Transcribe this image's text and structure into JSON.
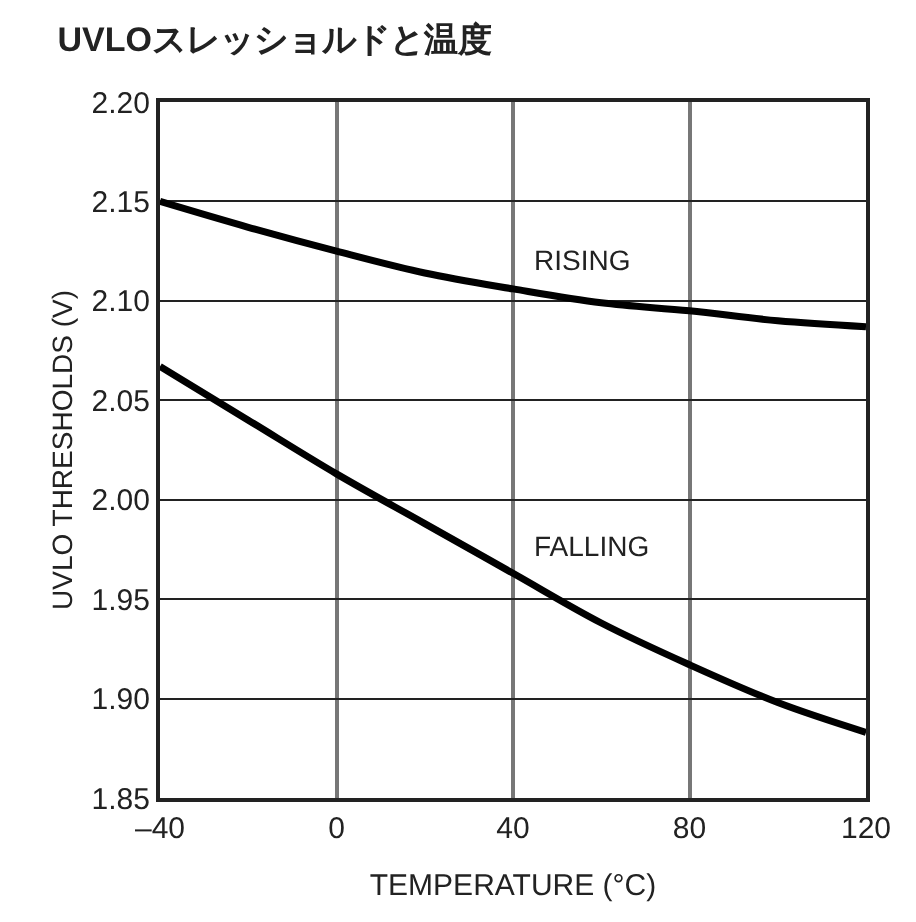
{
  "chart_data": {
    "type": "line",
    "title": "UVLOスレッショルドと温度",
    "xlabel": "TEMPERATURE (°C)",
    "ylabel": "UVLO THRESHOLDS (V)",
    "x": [
      -40,
      -20,
      0,
      20,
      40,
      60,
      80,
      100,
      120
    ],
    "series": [
      {
        "name": "RISING",
        "color": "#000000",
        "values": [
          2.15,
          2.137,
          2.125,
          2.114,
          2.106,
          2.099,
          2.095,
          2.09,
          2.087
        ]
      },
      {
        "name": "FALLING",
        "color": "#000000",
        "values": [
          2.067,
          2.04,
          2.013,
          1.988,
          1.963,
          1.938,
          1.917,
          1.898,
          1.883
        ]
      }
    ],
    "xlim": [
      -40,
      120
    ],
    "xticks": [
      {
        "value": -40,
        "label": "–40"
      },
      0,
      40,
      80,
      120
    ],
    "ylim": [
      1.85,
      2.2
    ],
    "yticks": [
      {
        "value": 1.85,
        "label": "1.85"
      },
      {
        "value": 1.9,
        "label": "1.90"
      },
      {
        "value": 1.95,
        "label": "1.95"
      },
      {
        "value": 2.0,
        "label": "2.00"
      },
      {
        "value": 2.05,
        "label": "2.05"
      },
      {
        "value": 2.1,
        "label": "2.10"
      },
      {
        "value": 2.15,
        "label": "2.15"
      },
      {
        "value": 2.2,
        "label": "2.20"
      }
    ],
    "grid": true,
    "legend": false,
    "marker": "none",
    "line_style": "solid"
  }
}
